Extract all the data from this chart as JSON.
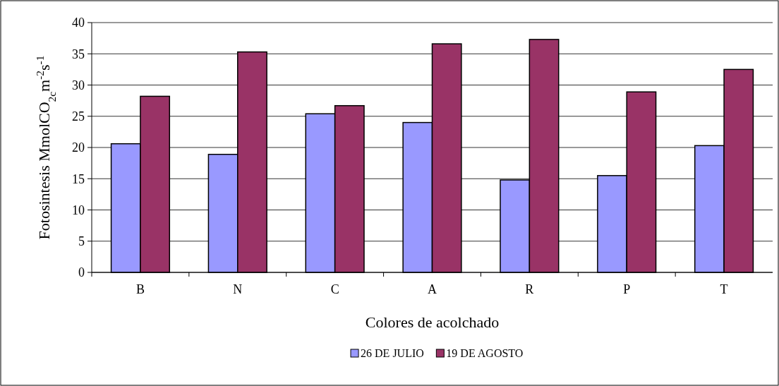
{
  "chart_data": {
    "type": "bar",
    "xlabel": "Colores de acolchado",
    "ylabel": "Fotosintesis MmolCO$_{2c}$m$^{-2}$s$^{-1}$",
    "categories": [
      "B",
      "N",
      "C",
      "A",
      "R",
      "P",
      "T"
    ],
    "series": [
      {
        "name": "26 DE JULIO",
        "color": "#9999ff",
        "values": [
          20.6,
          18.9,
          25.4,
          24.0,
          14.8,
          15.5,
          20.3
        ]
      },
      {
        "name": "19 DE AGOSTO",
        "color": "#993366",
        "values": [
          28.2,
          35.3,
          26.7,
          36.6,
          37.3,
          28.9,
          32.5
        ]
      }
    ],
    "ylim": [
      0,
      40
    ],
    "yticks": [
      0,
      5,
      10,
      15,
      20,
      25,
      30,
      35,
      40
    ],
    "grid": "y",
    "legend": "bottom"
  }
}
